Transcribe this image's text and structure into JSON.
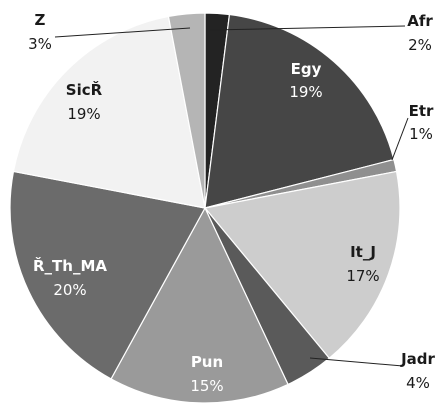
{
  "chart_data": {
    "type": "pie",
    "title": "",
    "slices": [
      {
        "name": "Afr",
        "value": 2,
        "label": "2%",
        "color": "#232323"
      },
      {
        "name": "Egy",
        "value": 19,
        "label": "19%",
        "color": "#464646"
      },
      {
        "name": "Etr",
        "value": 1,
        "label": "1%",
        "color": "#8f8f8f"
      },
      {
        "name": "It_J",
        "value": 17,
        "label": "17%",
        "color": "#cdcdcd"
      },
      {
        "name": "Jadr",
        "value": 4,
        "label": "4%",
        "color": "#5a5a5a"
      },
      {
        "name": "Pun",
        "value": 15,
        "label": "15%",
        "color": "#9a9a9a"
      },
      {
        "name": "Ř_Th_MA",
        "value": 20,
        "label": "20%",
        "color": "#6b6b6b"
      },
      {
        "name": "SicŘ",
        "value": 19,
        "label": "19%",
        "color": "#f2f2f2"
      },
      {
        "name": "Z",
        "value": 3,
        "label": "3%",
        "color": "#b5b5b5"
      }
    ]
  }
}
